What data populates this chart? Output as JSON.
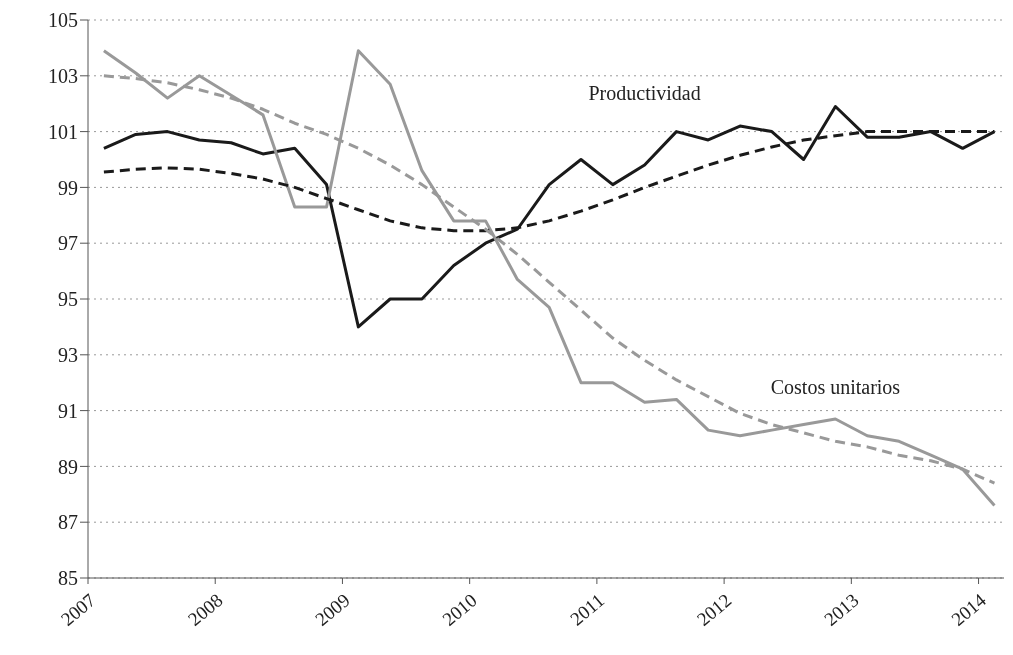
{
  "chart_data": {
    "type": "line",
    "x": [
      2007.125,
      2007.375,
      2007.625,
      2007.875,
      2008.125,
      2008.375,
      2008.625,
      2008.875,
      2009.125,
      2009.375,
      2009.625,
      2009.875,
      2010.125,
      2010.375,
      2010.625,
      2010.875,
      2011.125,
      2011.375,
      2011.625,
      2011.875,
      2012.125,
      2012.375,
      2012.625,
      2012.875,
      2013.125,
      2013.375,
      2013.625,
      2013.875,
      2014.125
    ],
    "series": [
      {
        "name": "Productividad",
        "color": "#1a1a1a",
        "line_style": "solid",
        "values": [
          100.4,
          100.9,
          101.0,
          100.7,
          100.6,
          100.2,
          100.4,
          99.1,
          94.0,
          95.0,
          95.0,
          96.2,
          97.0,
          97.5,
          99.1,
          100.0,
          99.1,
          99.8,
          101.0,
          100.7,
          101.2,
          101.0,
          100.0,
          101.9,
          100.8,
          100.8,
          101.0,
          100.4,
          101.0
        ]
      },
      {
        "name": "Costos unitarios",
        "color": "#999999",
        "line_style": "solid",
        "values": [
          103.9,
          103.1,
          102.2,
          103.0,
          102.3,
          101.6,
          98.3,
          98.3,
          103.9,
          102.7,
          99.6,
          97.8,
          97.8,
          95.7,
          94.7,
          92.0,
          92.0,
          91.3,
          91.4,
          90.3,
          90.1,
          90.3,
          90.5,
          90.7,
          90.1,
          89.9,
          89.4,
          88.9,
          87.6
        ]
      },
      {
        "color": "#1a1a1a",
        "line_style": "dashed",
        "values": [
          99.55,
          99.65,
          99.7,
          99.65,
          99.5,
          99.3,
          99.0,
          98.6,
          98.2,
          97.8,
          97.55,
          97.45,
          97.45,
          97.55,
          97.8,
          98.15,
          98.55,
          99.0,
          99.4,
          99.8,
          100.15,
          100.45,
          100.7,
          100.85,
          101.0,
          101.0,
          101.0,
          101.0,
          101.0
        ]
      },
      {
        "color": "#999999",
        "line_style": "dashed",
        "values": [
          103.0,
          102.9,
          102.75,
          102.5,
          102.2,
          101.8,
          101.3,
          100.9,
          100.4,
          99.8,
          99.1,
          98.3,
          97.5,
          96.6,
          95.6,
          94.6,
          93.6,
          92.8,
          92.1,
          91.5,
          90.9,
          90.5,
          90.2,
          89.9,
          89.7,
          89.4,
          89.2,
          88.9,
          88.4
        ]
      }
    ],
    "xlim": [
      2007,
      2014.2
    ],
    "xticks": [
      2007,
      2008,
      2009,
      2010,
      2011,
      2012,
      2013,
      2014
    ],
    "ylim": [
      85,
      105
    ],
    "yticks": [
      85,
      87,
      89,
      91,
      93,
      95,
      97,
      99,
      101,
      103,
      105
    ],
    "grid": "y",
    "marker": "none"
  }
}
